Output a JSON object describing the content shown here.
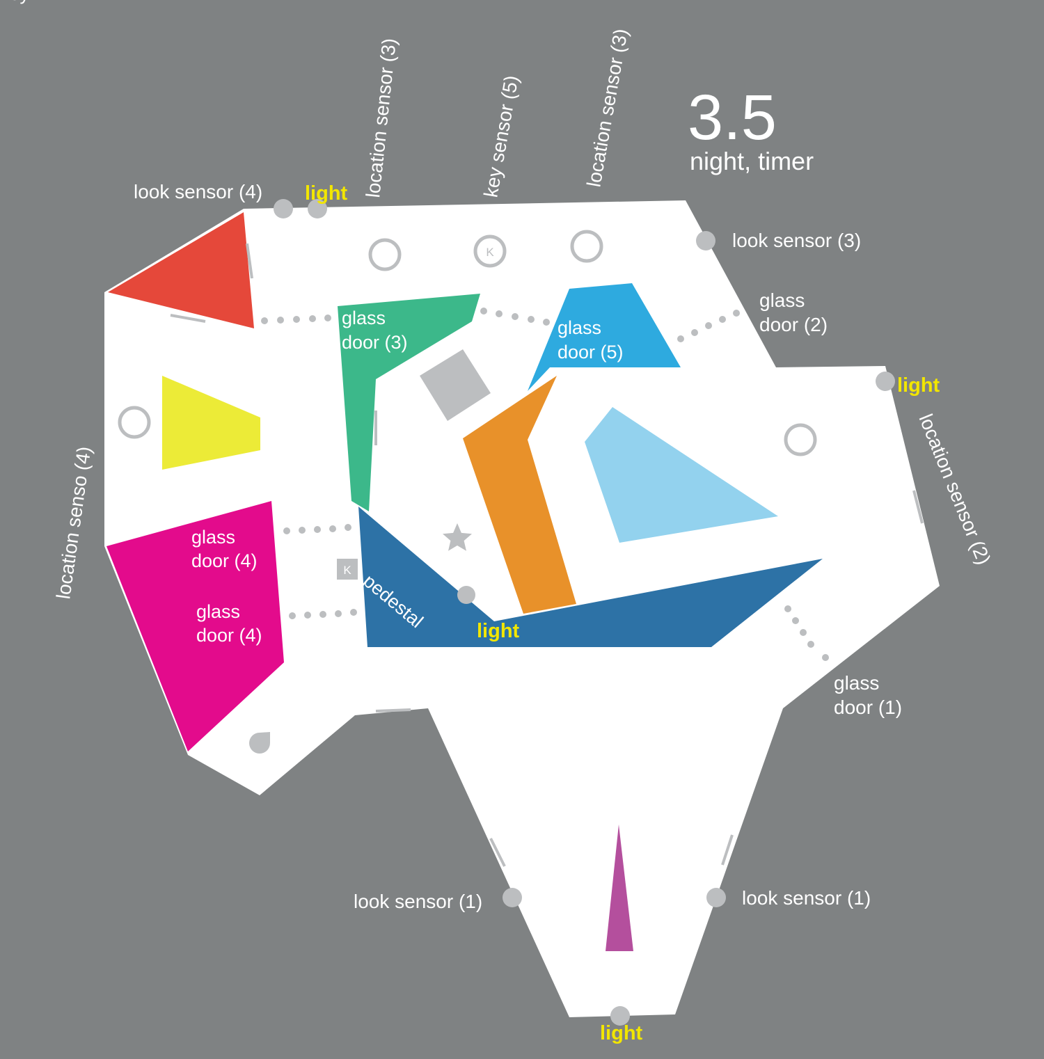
{
  "header": {
    "level": "3.5",
    "subtitle": "night, timer"
  },
  "labels": {
    "look_sensor_4": "look sensor (4)",
    "look_sensor_3": "look sensor (3)",
    "look_sensor_1_left": "look sensor (1)",
    "look_sensor_1_right": "look sensor (1)",
    "location_sensor_3_a": "location sensor (3)",
    "location_sensor_3_b": "location sensor (3)",
    "key_sensor_5": "key sensor (5)",
    "location_sensor_4": "location senso (4)",
    "location_sensor_2": "location sensor (2)",
    "glass_door_2": [
      "glass",
      "door (2)"
    ],
    "glass_door_1": [
      "glass",
      "door (1)"
    ],
    "glass_door_3": [
      "glass",
      "door (3)"
    ],
    "glass_door_5": [
      "glass",
      "door (5)"
    ],
    "glass_door_4_a": [
      "glass",
      "door (4)"
    ],
    "glass_door_4_b": [
      "glass",
      "door (4)"
    ],
    "key_pedestal": [
      "key",
      "pedestal"
    ],
    "key_marker": "K",
    "light_top": "light",
    "light_right": "light",
    "light_center": "light",
    "light_bottom": "light"
  },
  "colors": {
    "background": "#7f8283",
    "floor": "#ffffff",
    "marker": "#bcbec0",
    "light_text": "#f2e600",
    "red": "#e5483a",
    "yellow": "#eceb37",
    "magenta": "#e30b8c",
    "green": "#3cb88a",
    "sky_blue": "#2eaadf",
    "orange": "#e8912a",
    "light_blue": "#93d2ee",
    "dark_blue": "#2d72a6",
    "purple": "#b44f9d",
    "gray_block": "#bcbec0"
  }
}
